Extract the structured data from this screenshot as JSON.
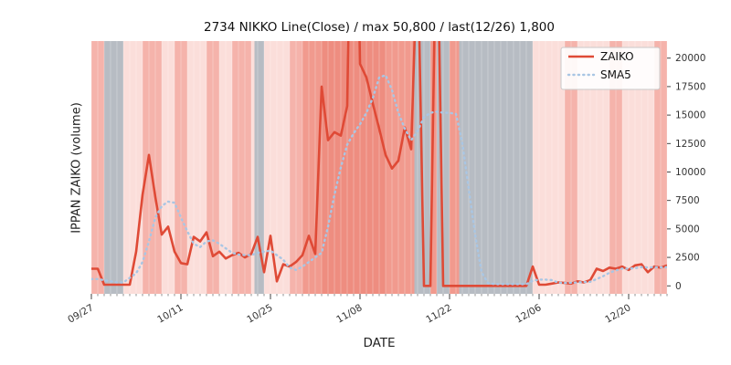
{
  "chart_data": {
    "type": "line",
    "title": "2734 NIKKO Line(Close) / max 50,800 / last(12/26) 1,800",
    "xlabel": "DATE",
    "ylabel": "IPPAN ZAIKO (volume)",
    "ylim": [
      -700,
      21500
    ],
    "y_ticks": [
      0,
      2500,
      5000,
      7500,
      10000,
      12500,
      15000,
      17500,
      20000
    ],
    "x_tick_positions": [
      0,
      14,
      28,
      42,
      56,
      70,
      84
    ],
    "x_tick_labels": [
      "09/27",
      "10/11",
      "10/25",
      "11/08",
      "11/22",
      "12/06",
      "12/20"
    ],
    "n_points": 91,
    "base_background": "#fbdeda",
    "grid_color": "#ffffff",
    "legend": {
      "position": "upper right",
      "entries": [
        "ZAIKO",
        "SMA5"
      ]
    },
    "series": [
      {
        "name": "ZAIKO",
        "color": "#df4a36",
        "style": "solid",
        "values": [
          1500,
          1500,
          100,
          100,
          100,
          100,
          100,
          3000,
          8000,
          11500,
          7800,
          4500,
          5200,
          3000,
          2000,
          1900,
          4300,
          3900,
          4700,
          2600,
          3000,
          2400,
          2700,
          2900,
          2500,
          2800,
          4300,
          1200,
          4400,
          400,
          1900,
          1700,
          2100,
          2700,
          4400,
          2800,
          17500,
          12800,
          13500,
          13200,
          15800,
          50800,
          19500,
          18300,
          16000,
          13800,
          11500,
          10300,
          11000,
          13900,
          12000,
          30000,
          0,
          0,
          35000,
          0,
          0,
          0,
          0,
          0,
          0,
          0,
          0,
          0,
          0,
          0,
          0,
          0,
          0,
          1700,
          100,
          100,
          200,
          300,
          250,
          200,
          400,
          300,
          500,
          1500,
          1300,
          1600,
          1500,
          1700,
          1400,
          1800,
          1900,
          1200,
          1700,
          1600,
          1800
        ]
      },
      {
        "name": "SMA5",
        "color": "#a9c6e4",
        "style": "dotted",
        "values": [
          600,
          600,
          500,
          400,
          300,
          300,
          700,
          1100,
          2100,
          3900,
          6000,
          7000,
          7400,
          7300,
          6000,
          4800,
          3700,
          3400,
          3900,
          4000,
          3700,
          3300,
          2900,
          2750,
          2700,
          2700,
          2900,
          3000,
          3100,
          2700,
          2300,
          1600,
          1400,
          1700,
          2100,
          2500,
          2900,
          5200,
          8000,
          10400,
          12400,
          13400,
          14200,
          15200,
          16500,
          18300,
          18500,
          17200,
          15200,
          13800,
          12800,
          13600,
          14800,
          15200,
          15300,
          15200,
          15200,
          15100,
          12500,
          8500,
          4500,
          1200,
          250,
          150,
          150,
          150,
          150,
          150,
          150,
          450,
          550,
          550,
          500,
          280,
          250,
          270,
          300,
          330,
          360,
          600,
          850,
          1150,
          1350,
          1520,
          1500,
          1560,
          1640,
          1620,
          1640,
          1620,
          1640
        ]
      }
    ],
    "background_bands": [
      {
        "start": 0,
        "end": 2,
        "color": "#f5b3ab"
      },
      {
        "start": 2,
        "end": 5,
        "color": "#b7bcc3"
      },
      {
        "start": 5,
        "end": 8,
        "color": "#fbdeda"
      },
      {
        "start": 8,
        "end": 11,
        "color": "#f5b3ab"
      },
      {
        "start": 11,
        "end": 13,
        "color": "#fbdeda"
      },
      {
        "start": 13,
        "end": 15,
        "color": "#f5b3ab"
      },
      {
        "start": 15,
        "end": 18,
        "color": "#fbdeda"
      },
      {
        "start": 18,
        "end": 20,
        "color": "#f5b3ab"
      },
      {
        "start": 20,
        "end": 22,
        "color": "#fbdeda"
      },
      {
        "start": 22,
        "end": 25,
        "color": "#f5b3ab"
      },
      {
        "start": 25,
        "end": 25.5,
        "color": "#fbdeda"
      },
      {
        "start": 25.5,
        "end": 27,
        "color": "#b7bcc3"
      },
      {
        "start": 27,
        "end": 31,
        "color": "#fbdeda"
      },
      {
        "start": 31,
        "end": 33,
        "color": "#f5b3ab"
      },
      {
        "start": 33,
        "end": 36,
        "color": "#f19a8e"
      },
      {
        "start": 36,
        "end": 46,
        "color": "#ee8d80"
      },
      {
        "start": 46,
        "end": 50.5,
        "color": "#f19a8e"
      },
      {
        "start": 50.5,
        "end": 53,
        "color": "#b7bcc3"
      },
      {
        "start": 53,
        "end": 54,
        "color": "#f19a8e"
      },
      {
        "start": 54,
        "end": 56,
        "color": "#b7bcc3"
      },
      {
        "start": 56,
        "end": 57.5,
        "color": "#f19a8e"
      },
      {
        "start": 57.5,
        "end": 69,
        "color": "#b7bcc3"
      },
      {
        "start": 69,
        "end": 74,
        "color": "#fbdeda"
      },
      {
        "start": 74,
        "end": 76,
        "color": "#f5b3ab"
      },
      {
        "start": 76,
        "end": 81,
        "color": "#fbdeda"
      },
      {
        "start": 81,
        "end": 83,
        "color": "#f5b3ab"
      },
      {
        "start": 83,
        "end": 88,
        "color": "#fbdeda"
      },
      {
        "start": 88,
        "end": 90,
        "color": "#f5b3ab"
      },
      {
        "start": 90,
        "end": 91,
        "color": "#fbdeda"
      }
    ]
  }
}
